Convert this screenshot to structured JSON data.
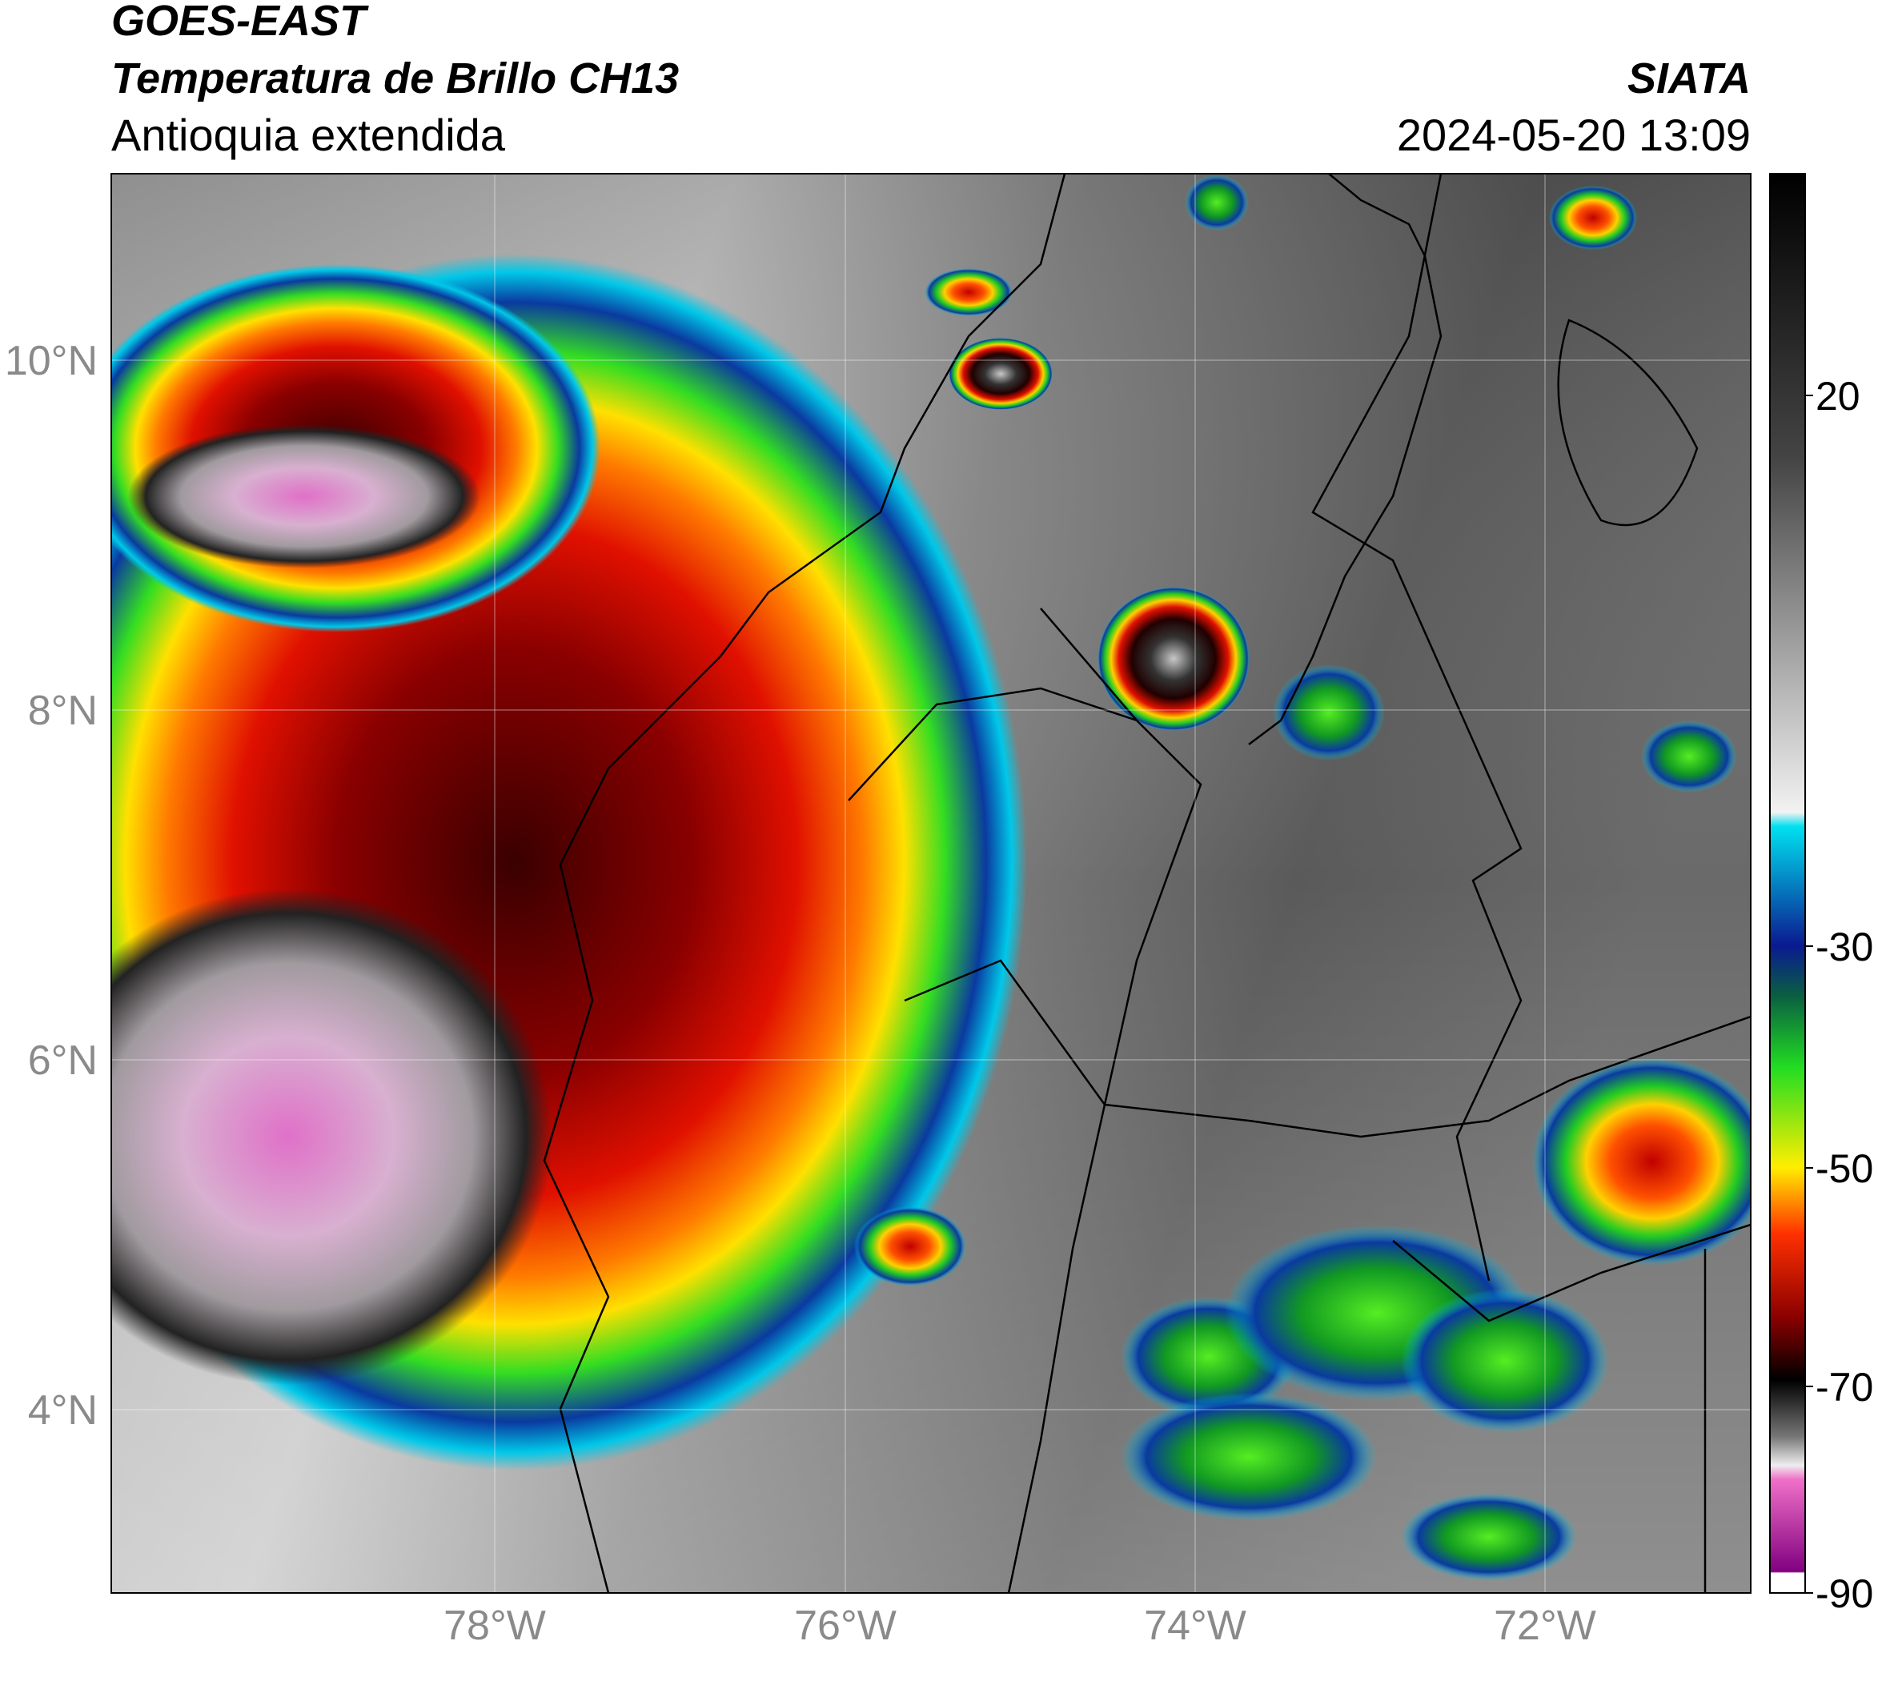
{
  "header": {
    "title": "GOES-EAST",
    "subtitle": "Temperatura de Brillo CH13",
    "region": "Antioquia extendida",
    "source": "SIATA",
    "timestamp": "2024-05-20 13:09"
  },
  "map": {
    "lon_labels": [
      "78°W",
      "76°W",
      "74°W",
      "72°W"
    ],
    "lat_labels": [
      "10°N",
      "8°N",
      "6°N",
      "4°N"
    ]
  },
  "colorbar": {
    "ticks": [
      20,
      -30,
      -50,
      -70,
      -90
    ]
  }
}
